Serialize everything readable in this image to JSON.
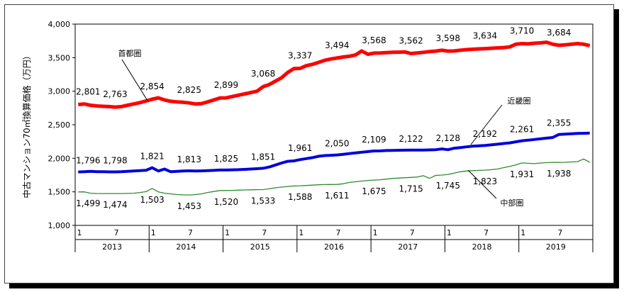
{
  "chart_data": {
    "type": "line",
    "ylabel": "中古マンション70㎡換算価格（万円）",
    "ylim": [
      1000,
      4000
    ],
    "yticks": [
      "1,000",
      "1,500",
      "2,000",
      "2,500",
      "3,000",
      "3,500",
      "4,000"
    ],
    "month_ticks": [
      "1",
      "7",
      "1",
      "7",
      "1",
      "7",
      "1",
      "7",
      "1",
      "7",
      "1",
      "7",
      "1",
      "7"
    ],
    "years": [
      "2013",
      "2014",
      "2015",
      "2016",
      "2017",
      "2018",
      "2019"
    ],
    "series": [
      {
        "name": "首都圏",
        "color": "#ff0000",
        "values": [
          2801,
          2810,
          2790,
          2780,
          2775,
          2770,
          2763,
          2770,
          2790,
          2810,
          2830,
          2854,
          2880,
          2900,
          2870,
          2850,
          2840,
          2835,
          2825,
          2810,
          2815,
          2840,
          2870,
          2899,
          2900,
          2920,
          2940,
          2960,
          2980,
          3000,
          3068,
          3100,
          3150,
          3200,
          3280,
          3337,
          3340,
          3380,
          3400,
          3430,
          3460,
          3480,
          3494,
          3510,
          3520,
          3540,
          3600,
          3550,
          3568,
          3570,
          3575,
          3580,
          3582,
          3585,
          3562,
          3570,
          3580,
          3590,
          3598,
          3610,
          3598,
          3600,
          3610,
          3620,
          3625,
          3630,
          3634,
          3640,
          3645,
          3650,
          3660,
          3700,
          3710,
          3705,
          3715,
          3720,
          3730,
          3700,
          3684,
          3690,
          3700,
          3710,
          3700,
          3680
        ],
        "labels": [
          "2,801",
          "2,763",
          "2,854",
          "2,825",
          "2,899",
          "3,068",
          "3,337",
          "3,494",
          "3,568",
          "3,562",
          "3,598",
          "3,634",
          "3,710",
          "3,684"
        ]
      },
      {
        "name": "近畿圏",
        "color": "#0000dd",
        "values": [
          1796,
          1800,
          1805,
          1800,
          1800,
          1798,
          1798,
          1800,
          1805,
          1810,
          1815,
          1821,
          1860,
          1810,
          1840,
          1800,
          1805,
          1810,
          1813,
          1810,
          1812,
          1815,
          1820,
          1825,
          1825,
          1828,
          1830,
          1835,
          1840,
          1845,
          1851,
          1870,
          1900,
          1930,
          1955,
          1961,
          1980,
          1995,
          2010,
          2030,
          2040,
          2045,
          2050,
          2060,
          2070,
          2080,
          2090,
          2100,
          2109,
          2110,
          2115,
          2118,
          2120,
          2121,
          2122,
          2122,
          2123,
          2125,
          2128,
          2140,
          2128,
          2150,
          2160,
          2170,
          2180,
          2186,
          2192,
          2200,
          2210,
          2220,
          2230,
          2245,
          2261,
          2270,
          2280,
          2290,
          2300,
          2310,
          2355,
          2360,
          2365,
          2370,
          2372,
          2375
        ],
        "labels": [
          "1,796",
          "1,798",
          "1,821",
          "1,813",
          "1,825",
          "1,851",
          "1,961",
          "2,050",
          "2,109",
          "2,122",
          "2,128",
          "2,192",
          "2,261",
          "2,355"
        ]
      },
      {
        "name": "中部圏",
        "color": "#2e8b2e",
        "values": [
          1499,
          1500,
          1480,
          1475,
          1474,
          1474,
          1474,
          1474,
          1476,
          1480,
          1490,
          1503,
          1550,
          1500,
          1480,
          1470,
          1460,
          1455,
          1453,
          1460,
          1470,
          1490,
          1505,
          1520,
          1520,
          1522,
          1525,
          1528,
          1530,
          1532,
          1533,
          1545,
          1560,
          1570,
          1580,
          1588,
          1590,
          1595,
          1600,
          1605,
          1608,
          1610,
          1611,
          1620,
          1640,
          1650,
          1660,
          1670,
          1675,
          1680,
          1690,
          1700,
          1705,
          1710,
          1715,
          1720,
          1740,
          1700,
          1745,
          1750,
          1760,
          1780,
          1800,
          1810,
          1815,
          1820,
          1823,
          1830,
          1840,
          1860,
          1880,
          1900,
          1931,
          1925,
          1920,
          1930,
          1935,
          1940,
          1938,
          1940,
          1945,
          1950,
          1990,
          1940
        ],
        "labels": [
          "1,499",
          "1,474",
          "1,503",
          "1,453",
          "1,520",
          "1,533",
          "1,588",
          "1,611",
          "1,675",
          "1,715",
          "1,745",
          "1,823",
          "1,931",
          "1,938"
        ]
      }
    ]
  }
}
